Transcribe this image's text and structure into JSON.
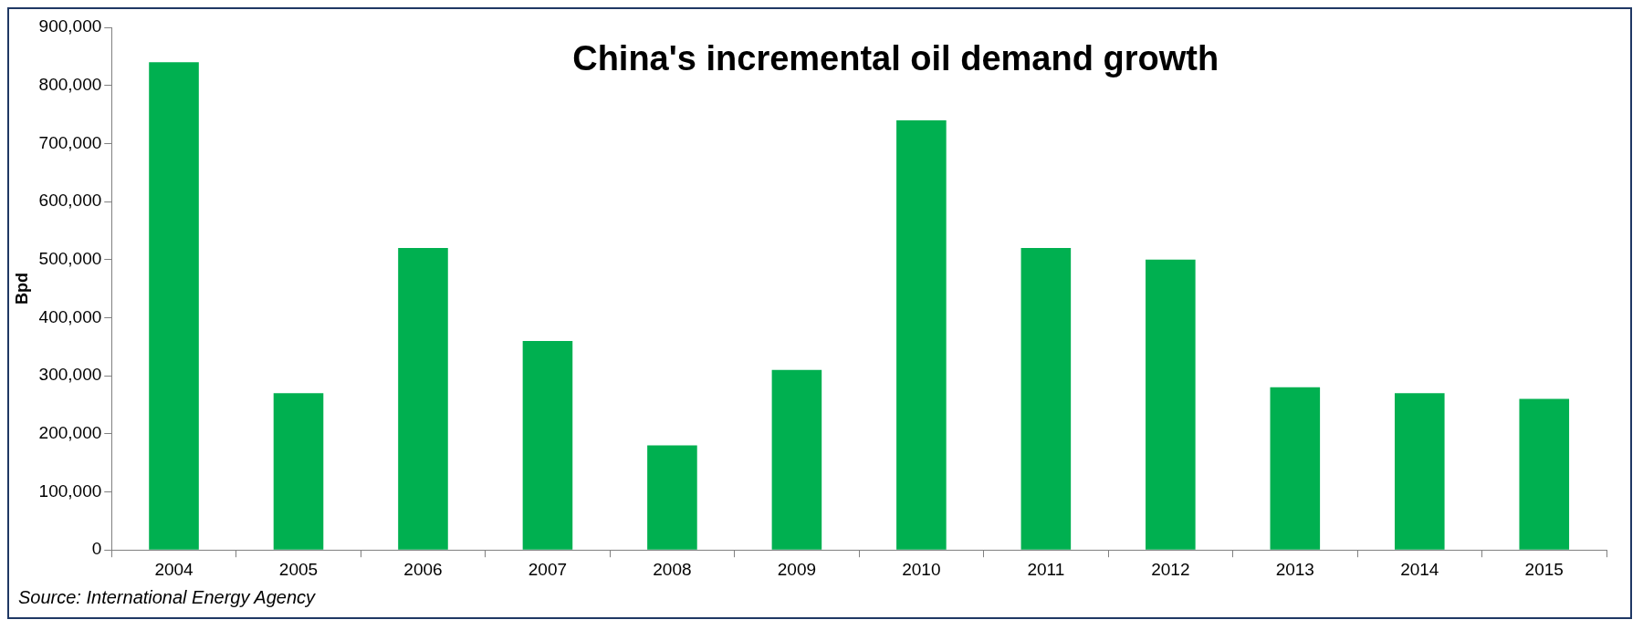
{
  "chart_data": {
    "type": "bar",
    "title": "China's incremental oil demand growth",
    "ylabel": "Bpd",
    "categories": [
      "2004",
      "2005",
      "2006",
      "2007",
      "2008",
      "2009",
      "2010",
      "2011",
      "2012",
      "2013",
      "2014",
      "2015"
    ],
    "values": [
      840000,
      270000,
      520000,
      360000,
      180000,
      310000,
      740000,
      520000,
      500000,
      280000,
      270000,
      260000
    ],
    "color": "#00b050",
    "ylim": [
      0,
      900000
    ],
    "yticks": [
      0,
      {
        "value": 100000,
        "label": "100,000"
      },
      {
        "value": 200000,
        "label": "200,000"
      },
      {
        "value": 300000,
        "label": "300,000"
      },
      {
        "value": 400000,
        "label": "400,000"
      },
      {
        "value": 500000,
        "label": "500,000"
      },
      {
        "value": 600000,
        "label": "600,000"
      },
      {
        "value": 700000,
        "label": "700,000"
      },
      {
        "value": 800000,
        "label": "800,000"
      },
      {
        "value": 900000,
        "label": "900,000"
      }
    ],
    "grid": false,
    "legend": false,
    "annotations": [
      "Source: International Energy Agency"
    ]
  }
}
